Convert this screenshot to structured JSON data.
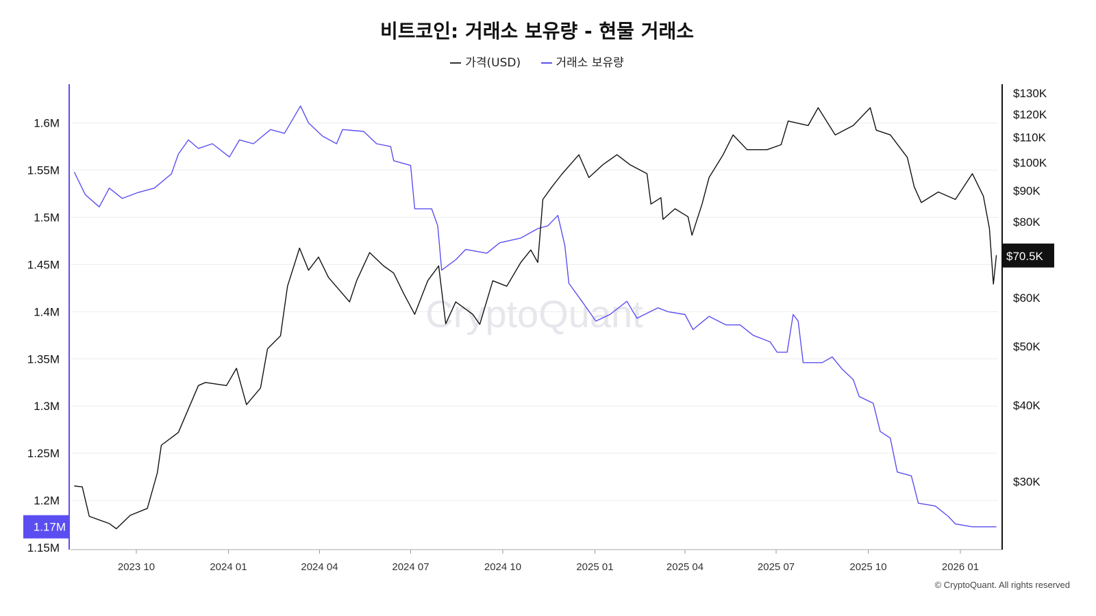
{
  "title": "비트코인: 거래소 보유량 - 현물 거래소",
  "legend": [
    {
      "label": "가격(USD)",
      "color": "#333333"
    },
    {
      "label": "거래소 보유량",
      "color": "#5b4ef0"
    }
  ],
  "watermark": "CryptoQuant",
  "copyright": "© CryptoQuant. All rights reserved",
  "chart_data": {
    "type": "line",
    "title": "비트코인: 거래소 보유량 - 현물 거래소",
    "x_unit": "days since 2023-10-01",
    "x_ticks": [
      {
        "day": 0,
        "label": "2023 10"
      },
      {
        "day": 92,
        "label": "2024 01"
      },
      {
        "day": 183,
        "label": "2024 04"
      },
      {
        "day": 274,
        "label": "2024 07"
      },
      {
        "day": 366,
        "label": "2024 10"
      },
      {
        "day": 458,
        "label": "2025 01"
      },
      {
        "day": 548,
        "label": "2025 04"
      },
      {
        "day": 639,
        "label": "2025 07"
      },
      {
        "day": 731,
        "label": "2025 10"
      },
      {
        "day": 823,
        "label": "2026 01"
      }
    ],
    "left_axis": {
      "ylim": [
        1.15,
        1.65
      ],
      "ticks": [
        1.15,
        1.2,
        1.25,
        1.3,
        1.35,
        1.4,
        1.45,
        1.5,
        1.55,
        1.6
      ],
      "tick_labels": [
        "1.15M",
        "1.2M",
        "1.25M",
        "1.3M",
        "1.35M",
        "1.4M",
        "1.45M",
        "1.5M",
        "1.55M",
        "1.6M"
      ],
      "current_label": "1.17M",
      "current_value": 1.172
    },
    "right_axis": {
      "scale": "log",
      "ylim_k": [
        22,
        135
      ],
      "ticks": [
        30,
        40,
        50,
        60,
        80,
        90,
        100,
        110,
        120,
        130
      ],
      "tick_labels": [
        "$30K",
        "$40K",
        "$50K",
        "$60K",
        "$80K",
        "$90K",
        "$100K",
        "$110K",
        "$120K",
        "$130K"
      ],
      "current_label": "$70.5K",
      "current_value": 70.5
    },
    "grid": true,
    "legend_position": "top-center",
    "series": [
      {
        "name": "거래소 보유량",
        "axis": "left",
        "color": "#5b4ef0",
        "points": [
          [
            -62,
            1.548
          ],
          [
            -51,
            1.524
          ],
          [
            -37,
            1.511
          ],
          [
            -27,
            1.531
          ],
          [
            -14,
            1.52
          ],
          [
            1,
            1.526
          ],
          [
            18,
            1.531
          ],
          [
            35,
            1.546
          ],
          [
            42,
            1.567
          ],
          [
            52,
            1.582
          ],
          [
            62,
            1.573
          ],
          [
            76,
            1.578
          ],
          [
            93,
            1.564
          ],
          [
            103,
            1.582
          ],
          [
            117,
            1.578
          ],
          [
            134,
            1.593
          ],
          [
            148,
            1.589
          ],
          [
            164,
            1.618
          ],
          [
            172,
            1.6
          ],
          [
            186,
            1.586
          ],
          [
            200,
            1.578
          ],
          [
            206,
            1.593
          ],
          [
            227,
            1.591
          ],
          [
            240,
            1.578
          ],
          [
            254,
            1.575
          ],
          [
            257,
            1.56
          ],
          [
            274,
            1.555
          ],
          [
            278,
            1.509
          ],
          [
            295,
            1.509
          ],
          [
            301,
            1.491
          ],
          [
            305,
            1.444
          ],
          [
            319,
            1.455
          ],
          [
            329,
            1.466
          ],
          [
            350,
            1.462
          ],
          [
            363,
            1.473
          ],
          [
            384,
            1.478
          ],
          [
            401,
            1.488
          ],
          [
            411,
            1.491
          ],
          [
            421,
            1.502
          ],
          [
            428,
            1.47
          ],
          [
            432,
            1.43
          ],
          [
            445,
            1.411
          ],
          [
            459,
            1.39
          ],
          [
            473,
            1.397
          ],
          [
            490,
            1.411
          ],
          [
            500,
            1.393
          ],
          [
            521,
            1.404
          ],
          [
            531,
            1.4
          ],
          [
            548,
            1.397
          ],
          [
            556,
            1.381
          ],
          [
            572,
            1.395
          ],
          [
            589,
            1.386
          ],
          [
            603,
            1.386
          ],
          [
            616,
            1.375
          ],
          [
            633,
            1.368
          ],
          [
            640,
            1.357
          ],
          [
            650,
            1.357
          ],
          [
            656,
            1.397
          ],
          [
            661,
            1.39
          ],
          [
            666,
            1.346
          ],
          [
            685,
            1.346
          ],
          [
            695,
            1.352
          ],
          [
            705,
            1.339
          ],
          [
            716,
            1.328
          ],
          [
            722,
            1.31
          ],
          [
            736,
            1.303
          ],
          [
            743,
            1.273
          ],
          [
            753,
            1.266
          ],
          [
            760,
            1.23
          ],
          [
            774,
            1.226
          ],
          [
            781,
            1.197
          ],
          [
            798,
            1.194
          ],
          [
            811,
            1.183
          ],
          [
            818,
            1.175
          ],
          [
            835,
            1.172
          ],
          [
            849,
            1.172
          ],
          [
            859,
            1.172
          ]
        ]
      },
      {
        "name": "가격(USD)",
        "axis": "right",
        "unit": "K USD",
        "color": "#111111",
        "points": [
          [
            -62,
            29.5
          ],
          [
            -54,
            29.4
          ],
          [
            -47,
            26.3
          ],
          [
            -27,
            25.6
          ],
          [
            -20,
            25.1
          ],
          [
            -6,
            26.4
          ],
          [
            11,
            27.1
          ],
          [
            21,
            31.0
          ],
          [
            25,
            34.4
          ],
          [
            42,
            36.1
          ],
          [
            62,
            43.1
          ],
          [
            69,
            43.6
          ],
          [
            90,
            43.1
          ],
          [
            100,
            46.0
          ],
          [
            110,
            40.1
          ],
          [
            124,
            42.7
          ],
          [
            131,
            49.5
          ],
          [
            144,
            52.0
          ],
          [
            151,
            62.7
          ],
          [
            163,
            72.4
          ],
          [
            172,
            66.6
          ],
          [
            182,
            70.0
          ],
          [
            192,
            64.8
          ],
          [
            213,
            59.1
          ],
          [
            220,
            64.0
          ],
          [
            233,
            71.2
          ],
          [
            247,
            67.7
          ],
          [
            257,
            65.9
          ],
          [
            267,
            61.0
          ],
          [
            278,
            56.4
          ],
          [
            291,
            64.0
          ],
          [
            302,
            67.7
          ],
          [
            309,
            54.4
          ],
          [
            319,
            59.1
          ],
          [
            336,
            56.4
          ],
          [
            343,
            54.3
          ],
          [
            356,
            64.0
          ],
          [
            370,
            62.7
          ],
          [
            384,
            68.6
          ],
          [
            394,
            71.9
          ],
          [
            401,
            68.6
          ],
          [
            406,
            87.0
          ],
          [
            415,
            91.2
          ],
          [
            425,
            95.7
          ],
          [
            442,
            103
          ],
          [
            452,
            94.5
          ],
          [
            466,
            99.2
          ],
          [
            480,
            103
          ],
          [
            493,
            99.2
          ],
          [
            510,
            95.9
          ],
          [
            514,
            85.5
          ],
          [
            524,
            87.6
          ],
          [
            526,
            80.7
          ],
          [
            538,
            84.0
          ],
          [
            551,
            81.5
          ],
          [
            555,
            76.0
          ],
          [
            565,
            85.5
          ],
          [
            572,
            94.5
          ],
          [
            586,
            103
          ],
          [
            596,
            111
          ],
          [
            610,
            105
          ],
          [
            630,
            105
          ],
          [
            644,
            107
          ],
          [
            651,
            117
          ],
          [
            671,
            115
          ],
          [
            681,
            123
          ],
          [
            698,
            111
          ],
          [
            716,
            115
          ],
          [
            733,
            123
          ],
          [
            739,
            113
          ],
          [
            753,
            111
          ],
          [
            770,
            102
          ],
          [
            777,
            91.2
          ],
          [
            784,
            86
          ],
          [
            801,
            89.5
          ],
          [
            818,
            87
          ],
          [
            835,
            95.9
          ],
          [
            846,
            88.1
          ],
          [
            852,
            78
          ],
          [
            856,
            63.2
          ],
          [
            859,
            70.5
          ]
        ]
      }
    ]
  }
}
